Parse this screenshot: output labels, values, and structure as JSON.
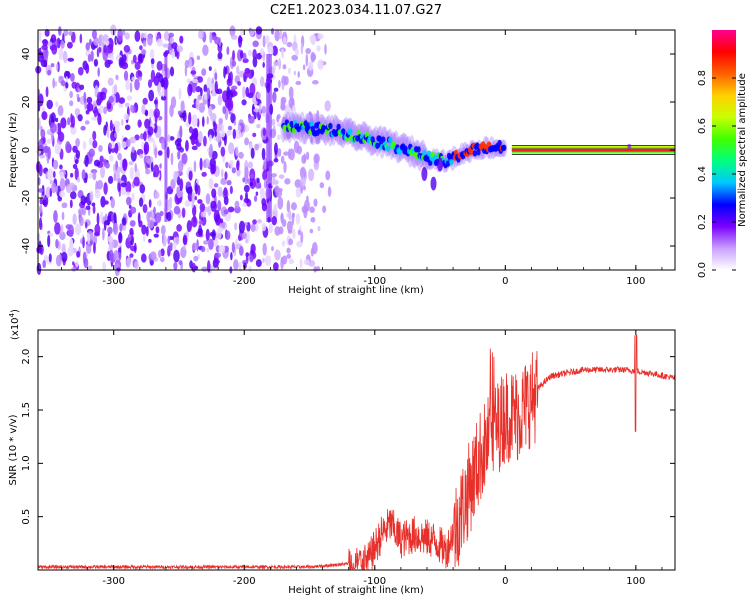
{
  "figure": {
    "title": "C2E1.2023.034.11.07.G27"
  },
  "chart_data": [
    {
      "type": "heatmap",
      "xlabel": "Height of straight line (km)",
      "ylabel": "Frequency (Hz)",
      "xlim": [
        -358,
        130
      ],
      "ylim": [
        -50,
        50
      ],
      "xticks": [
        -300,
        -200,
        -100,
        0,
        100
      ],
      "yticks": [
        -40,
        -20,
        0,
        20,
        40
      ],
      "colorbar": {
        "label": "Normalized spectral amplitude",
        "range": [
          0,
          1
        ],
        "ticks": [
          0.0,
          0.2,
          0.4,
          0.6,
          0.8
        ],
        "colors": [
          "#ffffff",
          "#c9a0ff",
          "#7a00ff",
          "#0000ff",
          "#00c8ff",
          "#00ff80",
          "#40ff00",
          "#c8ff00",
          "#ffd000",
          "#ff6000",
          "#ff0000",
          "#ff0090"
        ]
      },
      "features": {
        "noise_region_x": [
          -358,
          -130
        ],
        "noise_fade_x": [
          -175,
          -130
        ],
        "drifting_signal": [
          [
            -170,
            10
          ],
          [
            -130,
            8
          ],
          [
            -100,
            4
          ],
          [
            -80,
            1
          ],
          [
            -60,
            -3
          ],
          [
            -45,
            -5
          ],
          [
            -35,
            -2
          ],
          [
            -25,
            0
          ],
          [
            -15,
            1
          ],
          [
            -5,
            1
          ],
          [
            0,
            1
          ]
        ],
        "tone_x": [
          5,
          130
        ],
        "tone_freq": 0
      }
    },
    {
      "type": "line",
      "xlabel": "Height of straight line (km)",
      "ylabel": "SNR (10 * v/v)",
      "ylabel_exponent": "(x10",
      "exponent_power": "4",
      "exponent_close": ")",
      "xlim": [
        -358,
        130
      ],
      "ylim": [
        0,
        2.25
      ],
      "xticks": [
        -300,
        -200,
        -100,
        0,
        100
      ],
      "yticks": [
        0.5,
        1.0,
        1.5,
        2.0
      ],
      "color": "#e8302a",
      "envelope": [
        [
          -358,
          0.03
        ],
        [
          -250,
          0.03
        ],
        [
          -150,
          0.03
        ],
        [
          -120,
          0.06
        ],
        [
          -105,
          0.1
        ],
        [
          -95,
          0.35
        ],
        [
          -88,
          0.45
        ],
        [
          -80,
          0.3
        ],
        [
          -70,
          0.35
        ],
        [
          -55,
          0.3
        ],
        [
          -45,
          0.2
        ],
        [
          -35,
          0.55
        ],
        [
          -25,
          0.9
        ],
        [
          -18,
          1.15
        ],
        [
          -10,
          1.3
        ],
        [
          0,
          1.5
        ],
        [
          10,
          1.5
        ],
        [
          20,
          1.65
        ],
        [
          35,
          1.82
        ],
        [
          60,
          1.88
        ],
        [
          90,
          1.88
        ],
        [
          100,
          1.87
        ],
        [
          115,
          1.84
        ],
        [
          130,
          1.8
        ]
      ]
    }
  ]
}
